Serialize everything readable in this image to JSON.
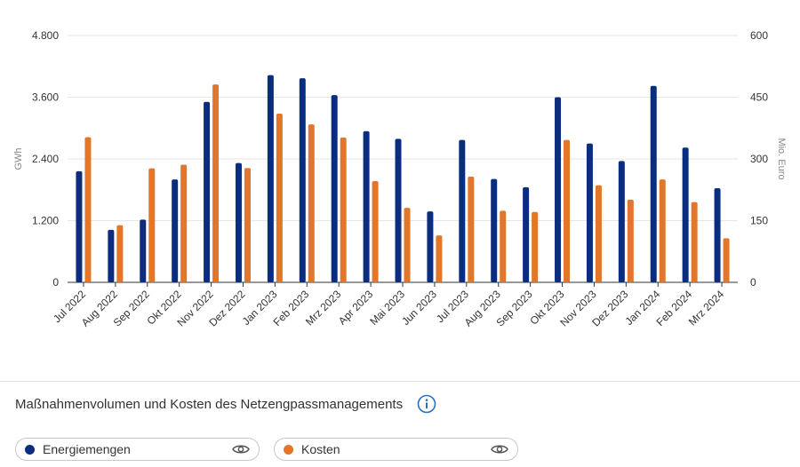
{
  "chart_data": {
    "type": "bar",
    "categories": [
      "Jul 2022",
      "Aug 2022",
      "Sep 2022",
      "Okt 2022",
      "Nov 2022",
      "Dez 2022",
      "Jan 2023",
      "Feb 2023",
      "Mrz 2023",
      "Apr 2023",
      "Mai 2023",
      "Jun 2023",
      "Jul 2023",
      "Aug 2023",
      "Sep 2023",
      "Okt 2023",
      "Nov 2023",
      "Dez 2023",
      "Jan 2024",
      "Feb 2024",
      "Mrz 2024"
    ],
    "series": [
      {
        "name": "Energiemengen",
        "axis": "left",
        "color": "#0a2d80",
        "values": [
          2160,
          1020,
          1220,
          2000,
          3510,
          2320,
          4030,
          3970,
          3640,
          2940,
          2790,
          1380,
          2770,
          2010,
          1850,
          3600,
          2700,
          2360,
          3820,
          2620,
          1830
        ]
      },
      {
        "name": "Kosten",
        "axis": "right",
        "color": "#e2762a",
        "values": [
          353,
          139,
          277,
          286,
          481,
          278,
          410,
          384,
          352,
          246,
          181,
          114,
          257,
          174,
          171,
          346,
          236,
          201,
          250,
          195,
          107
        ]
      }
    ],
    "y_left": {
      "label": "GWh",
      "min": 0,
      "max": 4800,
      "ticks": [
        "0",
        "1.200",
        "2.400",
        "3.600",
        "4.800"
      ],
      "tick_values": [
        0,
        1200,
        2400,
        3600,
        4800
      ]
    },
    "y_right": {
      "label": "Mio. Euro",
      "min": 0,
      "max": 600,
      "ticks": [
        "0",
        "150",
        "300",
        "450",
        "600"
      ],
      "tick_values": [
        0,
        150,
        300,
        450,
        600
      ]
    },
    "grid": true,
    "legend_position": "bottom"
  },
  "caption": {
    "text": "Maßnahmenvolumen und Kosten des Netzengpassmanagements",
    "info_icon": "info-circle-icon"
  },
  "legend": [
    {
      "label": "Energiemengen",
      "color": "#0a2d80",
      "icon": "eye-icon"
    },
    {
      "label": "Kosten",
      "color": "#e2762a",
      "icon": "eye-icon"
    }
  ],
  "colors": {
    "grid": "#e6e6e6",
    "axis": "#333333",
    "info": "#2a6ebf"
  }
}
